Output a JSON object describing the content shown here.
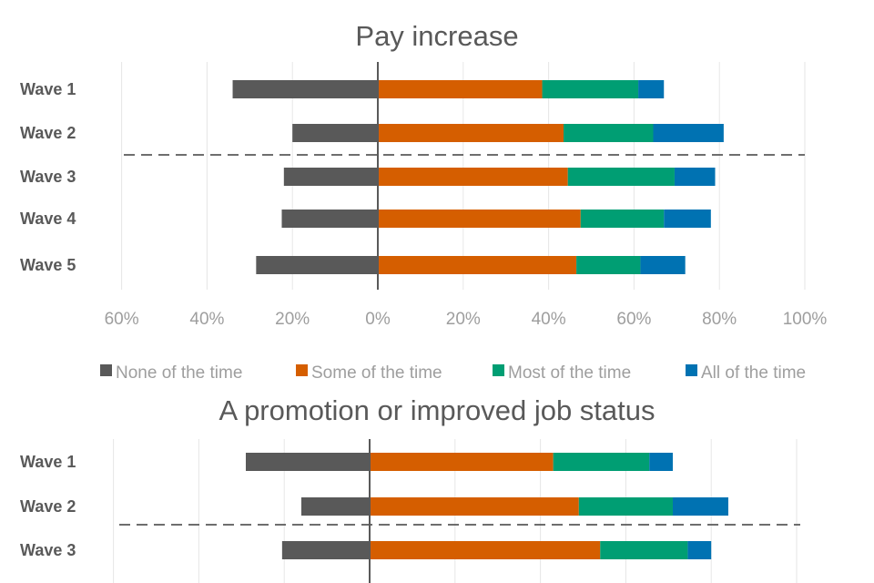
{
  "colors": {
    "none": "#595959",
    "some": "#D55E00",
    "most": "#009E73",
    "all": "#0072B2",
    "grid": "#E6E6E6",
    "axis": "#595959",
    "tick_text": "#9E9E9E",
    "title_text": "#595959",
    "label_text": "#595959",
    "dashed": "#595959"
  },
  "legend": [
    {
      "key": "none",
      "label": "None of the time"
    },
    {
      "key": "some",
      "label": "Some of the time"
    },
    {
      "key": "most",
      "label": "Most of the time"
    },
    {
      "key": "all",
      "label": "All of the time"
    }
  ],
  "chart_data": [
    {
      "type": "bar",
      "orientation": "horizontal",
      "stacked": "diverging",
      "title": "Pay increase",
      "categories": [
        "Wave 1",
        "Wave 2",
        "Wave 3",
        "Wave 4",
        "Wave 5"
      ],
      "series": [
        {
          "name": "None of the time",
          "values": [
            -34,
            -20,
            -22,
            -22.5,
            -28.5
          ]
        },
        {
          "name": "Some of the time",
          "values": [
            38.5,
            43.5,
            44.5,
            47.5,
            46.5
          ]
        },
        {
          "name": "Most of the time",
          "values": [
            22.5,
            21,
            25,
            19.5,
            15
          ]
        },
        {
          "name": "All of the time",
          "values": [
            6,
            16.5,
            9.5,
            11,
            10.5
          ]
        }
      ],
      "xlim": [
        -60,
        100
      ],
      "xticks": [
        -60,
        -40,
        -20,
        0,
        20,
        40,
        60,
        80,
        100
      ],
      "xtick_labels": [
        "60%",
        "40%",
        "20%",
        "0%",
        "20%",
        "40%",
        "60%",
        "80%",
        "100%"
      ],
      "divider_after_category": "Wave 2",
      "grid": true
    },
    {
      "type": "bar",
      "orientation": "horizontal",
      "stacked": "diverging",
      "title": "A promotion or improved job status",
      "categories": [
        "Wave 1",
        "Wave 2",
        "Wave 3"
      ],
      "series": [
        {
          "name": "None of the time",
          "values": [
            -29,
            -16,
            -20.5
          ]
        },
        {
          "name": "Some of the time",
          "values": [
            43,
            49,
            54
          ]
        },
        {
          "name": "Most of the time",
          "values": [
            22.5,
            22,
            20.5
          ]
        },
        {
          "name": "All of the time",
          "values": [
            5.5,
            13,
            5.5
          ]
        }
      ],
      "xlim": [
        -60,
        100
      ],
      "divider_after_category": "Wave 2",
      "grid": true
    }
  ]
}
